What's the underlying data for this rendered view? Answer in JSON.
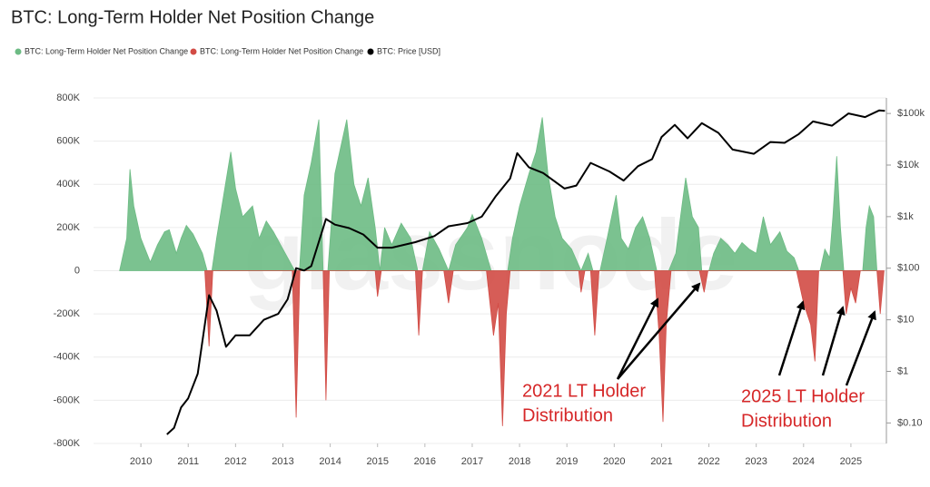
{
  "chart_data": {
    "type": "area",
    "title": "BTC: Long-Term Holder Net Position Change",
    "watermark": "glassnode",
    "xlim": [
      2009,
      2025.75
    ],
    "xticks": [
      2010,
      2011,
      2012,
      2013,
      2014,
      2015,
      2016,
      2017,
      2018,
      2019,
      2020,
      2021,
      2022,
      2023,
      2024,
      2025
    ],
    "ylim": [
      -800000,
      800000
    ],
    "yticks": [
      {
        "value": -800000,
        "label": "-800K"
      },
      {
        "value": -600000,
        "label": "-600K"
      },
      {
        "value": -400000,
        "label": "-400K"
      },
      {
        "value": -200000,
        "label": "-200K"
      },
      0,
      {
        "value": 200000,
        "label": "200K"
      },
      {
        "value": 400000,
        "label": "400K"
      },
      {
        "value": 600000,
        "label": "600K"
      },
      {
        "value": 800000,
        "label": "800K"
      }
    ],
    "y2lim": [
      0.04,
      200000
    ],
    "y2log": true,
    "y2ticks": [
      {
        "value": 0.1,
        "label": "$0.10"
      },
      {
        "value": 1,
        "label": "$1"
      },
      {
        "value": 10,
        "label": "$10"
      },
      {
        "value": 100,
        "label": "$100"
      },
      {
        "value": 1000,
        "label": "$1k"
      },
      {
        "value": 10000,
        "label": "$10k"
      },
      {
        "value": 100000,
        "label": "$100k"
      }
    ],
    "grid": true,
    "series": [
      {
        "name": "BTC: Long-Term Holder Net Position Change",
        "color": "#6dbb84",
        "x": [
          2009.55,
          2009.7,
          2009.77,
          2009.85,
          2010.0,
          2010.2,
          2010.35,
          2010.5,
          2010.6,
          2010.75,
          2010.85,
          2010.96,
          2011.1,
          2011.3,
          2011.4,
          2011.5,
          2011.6,
          2011.75,
          2011.9,
          2012.0,
          2012.15,
          2012.36,
          2012.5,
          2012.65,
          2012.8,
          2012.95,
          2013.1,
          2013.25,
          2013.35,
          2013.45,
          2013.6,
          2013.76,
          2013.85,
          2013.95,
          2014.1,
          2014.35,
          2014.5,
          2014.65,
          2014.8,
          2014.95,
          2015.05,
          2015.15,
          2015.3,
          2015.5,
          2015.7,
          2015.85,
          2015.95,
          2016.1,
          2016.3,
          2016.5,
          2016.65,
          2016.9,
          2017.0,
          2017.2,
          2017.4,
          2017.75,
          2017.85,
          2018.0,
          2018.2,
          2018.35,
          2018.48,
          2018.6,
          2018.75,
          2018.9,
          2019.1,
          2019.3,
          2019.45,
          2019.55,
          2019.7,
          2019.85,
          2020.04,
          2020.15,
          2020.3,
          2020.45,
          2020.6,
          2020.75,
          2020.9,
          2021.15,
          2021.3,
          2021.4,
          2021.51,
          2021.65,
          2021.78,
          2021.85,
          2022.0,
          2022.1,
          2022.25,
          2022.4,
          2022.55,
          2022.7,
          2022.85,
          2023.0,
          2023.15,
          2023.3,
          2023.5,
          2023.65,
          2023.8,
          2023.9,
          2024.35,
          2024.45,
          2024.55,
          2024.62,
          2024.7,
          2024.78,
          2024.85,
          2025.25,
          2025.32,
          2025.39,
          2025.48,
          2025.55
        ],
        "values": [
          0,
          150000,
          470000,
          300000,
          150000,
          40000,
          120000,
          180000,
          190000,
          80000,
          150000,
          210000,
          170000,
          80000,
          0,
          0,
          150000,
          350000,
          550000,
          380000,
          250000,
          300000,
          150000,
          230000,
          180000,
          120000,
          60000,
          0,
          0,
          350000,
          500000,
          700000,
          0,
          0,
          450000,
          700000,
          400000,
          300000,
          430000,
          200000,
          0,
          200000,
          120000,
          220000,
          150000,
          0,
          0,
          180000,
          100000,
          0,
          120000,
          200000,
          260000,
          150000,
          0,
          0,
          150000,
          300000,
          450000,
          550000,
          710000,
          450000,
          250000,
          150000,
          100000,
          0,
          80000,
          0,
          0,
          150000,
          350000,
          150000,
          100000,
          200000,
          250000,
          150000,
          0,
          0,
          80000,
          250000,
          430000,
          250000,
          200000,
          0,
          0,
          80000,
          150000,
          120000,
          80000,
          130000,
          100000,
          80000,
          250000,
          120000,
          180000,
          90000,
          60000,
          0,
          0,
          100000,
          60000,
          250000,
          530000,
          200000,
          0,
          0,
          200000,
          300000,
          250000,
          0
        ]
      },
      {
        "name": "BTC: Long-Term Holder Net Position Change",
        "color": "#d24b45",
        "x": [
          2011.35,
          2011.44,
          2011.52,
          2013.2,
          2013.28,
          2013.36,
          2013.85,
          2013.91,
          2013.98,
          2014.95,
          2015.0,
          2015.08,
          2015.8,
          2015.87,
          2015.95,
          2016.4,
          2016.5,
          2016.6,
          2017.3,
          2017.45,
          2017.55,
          2017.64,
          2017.72,
          2017.8,
          2019.25,
          2019.3,
          2019.38,
          2019.5,
          2019.59,
          2019.68,
          2020.85,
          2020.95,
          2021.03,
          2021.1,
          2021.2,
          2021.8,
          2021.9,
          2021.98,
          2023.85,
          2024.0,
          2024.15,
          2024.24,
          2024.32,
          2024.83,
          2024.9,
          2025.0,
          2025.1,
          2025.2,
          2025.55,
          2025.62,
          2025.7
        ],
        "values": [
          0,
          -350000,
          0,
          0,
          -680000,
          0,
          0,
          -600000,
          0,
          0,
          -120000,
          0,
          0,
          -300000,
          0,
          0,
          -150000,
          0,
          0,
          -300000,
          -150000,
          -720000,
          -200000,
          0,
          0,
          -100000,
          0,
          0,
          -300000,
          0,
          0,
          -300000,
          -700000,
          -250000,
          0,
          0,
          -100000,
          0,
          0,
          -150000,
          -250000,
          -420000,
          0,
          0,
          -200000,
          -80000,
          -150000,
          0,
          0,
          -200000,
          0
        ]
      },
      {
        "name": "BTC: Price [USD]",
        "color": "#000000",
        "axis": "y2",
        "x": [
          2010.55,
          2010.7,
          2010.85,
          2011.0,
          2011.2,
          2011.44,
          2011.6,
          2011.8,
          2012.0,
          2012.3,
          2012.6,
          2012.9,
          2013.1,
          2013.28,
          2013.45,
          2013.6,
          2013.91,
          2014.1,
          2014.4,
          2014.7,
          2015.0,
          2015.3,
          2015.8,
          2016.2,
          2016.5,
          2016.9,
          2017.2,
          2017.5,
          2017.8,
          2017.95,
          2018.2,
          2018.5,
          2018.95,
          2019.2,
          2019.5,
          2019.9,
          2020.2,
          2020.5,
          2020.8,
          2021.0,
          2021.28,
          2021.55,
          2021.85,
          2022.2,
          2022.5,
          2022.95,
          2023.3,
          2023.6,
          2023.9,
          2024.2,
          2024.6,
          2024.95,
          2025.3,
          2025.6,
          2025.72
        ],
        "values": [
          0.06,
          0.08,
          0.2,
          0.3,
          0.9,
          30,
          15,
          3,
          5,
          5,
          10,
          13,
          25,
          100,
          90,
          110,
          900,
          700,
          600,
          450,
          250,
          250,
          320,
          420,
          650,
          750,
          1000,
          2500,
          5500,
          17000,
          9000,
          7000,
          3500,
          4000,
          11000,
          7500,
          5000,
          9500,
          13000,
          35000,
          60000,
          33000,
          65000,
          42000,
          20000,
          16500,
          28000,
          27000,
          40000,
          70000,
          58000,
          100000,
          85000,
          115000,
          112000
        ]
      }
    ],
    "annotations": [
      [
        "2021 LT Holder",
        "Distribution"
      ],
      [
        "2025 LT Holder",
        "Distribution"
      ]
    ]
  }
}
